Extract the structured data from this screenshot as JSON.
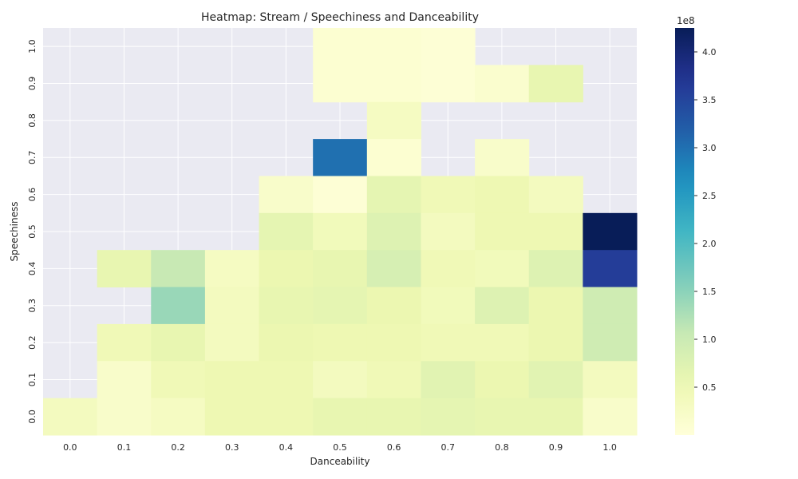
{
  "chart_data": {
    "type": "heatmap",
    "title": "Heatmap: Stream / Speechiness and Danceability",
    "xlabel": "Danceability",
    "ylabel": "Speechiness",
    "x_categories": [
      "0.0",
      "0.1",
      "0.2",
      "0.3",
      "0.4",
      "0.5",
      "0.6",
      "0.7",
      "0.8",
      "0.9",
      "1.0"
    ],
    "y_categories": [
      "1.0",
      "0.9",
      "0.8",
      "0.7",
      "0.6",
      "0.5",
      "0.4",
      "0.3",
      "0.2",
      "0.1",
      "0.0"
    ],
    "values": [
      [
        null,
        null,
        null,
        null,
        null,
        0.1,
        0.1,
        0.05,
        null,
        null,
        null
      ],
      [
        null,
        null,
        null,
        null,
        null,
        0.1,
        0.1,
        0.05,
        0.15,
        0.6,
        null
      ],
      [
        null,
        null,
        null,
        null,
        null,
        null,
        0.3,
        null,
        null,
        null,
        null
      ],
      [
        null,
        null,
        null,
        null,
        null,
        3.0,
        0.1,
        null,
        0.2,
        null,
        null
      ],
      [
        null,
        null,
        null,
        null,
        0.2,
        0.05,
        0.65,
        0.45,
        0.5,
        0.35,
        null
      ],
      [
        null,
        null,
        null,
        null,
        0.65,
        0.4,
        0.75,
        0.35,
        0.5,
        0.5,
        4.25
      ],
      [
        null,
        0.6,
        1.05,
        0.3,
        0.55,
        0.6,
        0.85,
        0.45,
        0.4,
        0.75,
        3.6
      ],
      [
        null,
        null,
        1.4,
        0.35,
        0.6,
        0.65,
        0.55,
        0.4,
        0.75,
        0.55,
        0.95
      ],
      [
        null,
        0.45,
        0.6,
        0.35,
        0.55,
        0.5,
        0.5,
        0.45,
        0.45,
        0.55,
        0.95
      ],
      [
        null,
        0.2,
        0.45,
        0.5,
        0.5,
        0.35,
        0.45,
        0.7,
        0.55,
        0.7,
        0.35
      ],
      [
        0.35,
        0.2,
        0.3,
        0.5,
        0.5,
        0.6,
        0.6,
        0.65,
        0.6,
        0.6,
        0.2
      ]
    ],
    "value_unit_multiplier": "1e8",
    "colorbar": {
      "min": 0.0,
      "max": 4.25,
      "ticks": [
        0.5,
        1.0,
        1.5,
        2.0,
        2.5,
        3.0,
        3.5,
        4.0
      ],
      "tick_labels": [
        "0.5",
        "1.0",
        "1.5",
        "2.0",
        "2.5",
        "3.0",
        "3.5",
        "4.0"
      ],
      "exponent_label": "1e8",
      "colormap": "YlGnBu"
    },
    "grid": true,
    "missing_cell_color": "#eaeaf2"
  },
  "colors": {
    "background": "#eaeaf2",
    "grid": "#ffffff",
    "text": "#262626"
  }
}
